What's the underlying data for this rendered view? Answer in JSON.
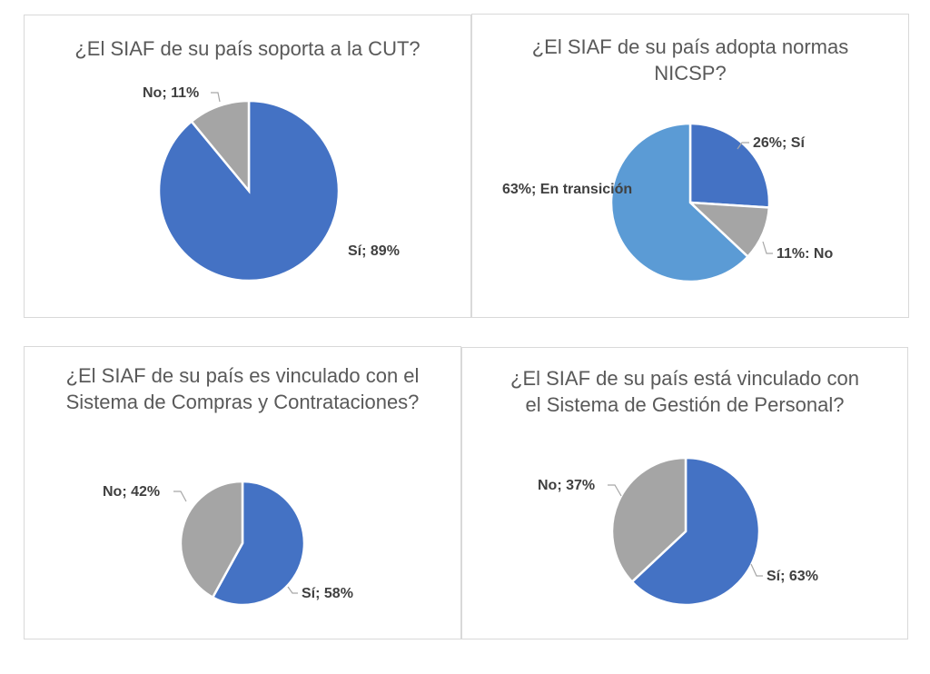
{
  "colors": {
    "blue": "#4472c4",
    "gray": "#a5a5a5",
    "lightblue": "#5b9bd5"
  },
  "chart_data": [
    {
      "type": "pie",
      "title": "¿El SIAF de su país soporta a la CUT?",
      "slices": [
        {
          "label": "Sí; 89%",
          "value": 89,
          "color": "#4472c4"
        },
        {
          "label": "No; 11%",
          "value": 11,
          "color": "#a5a5a5"
        }
      ]
    },
    {
      "type": "pie",
      "title": "¿El SIAF de su país adopta normas NICSP?",
      "slices": [
        {
          "label": "26%; Sí",
          "value": 26,
          "color": "#4472c4"
        },
        {
          "label": "11%: No",
          "value": 11,
          "color": "#a5a5a5"
        },
        {
          "label": "63%; En transición",
          "value": 63,
          "color": "#5b9bd5"
        }
      ]
    },
    {
      "type": "pie",
      "title": "¿El SIAF de su país es vinculado con el Sistema de Compras y Contrataciones?",
      "slices": [
        {
          "label": "Sí; 58%",
          "value": 58,
          "color": "#4472c4"
        },
        {
          "label": "No; 42%",
          "value": 42,
          "color": "#a5a5a5"
        }
      ]
    },
    {
      "type": "pie",
      "title": "¿El SIAF de su país está vinculado con el Sistema de Gestión de Personal?",
      "slices": [
        {
          "label": "Sí; 63%",
          "value": 63,
          "color": "#4472c4"
        },
        {
          "label": "No; 37%",
          "value": 37,
          "color": "#a5a5a5"
        }
      ]
    }
  ]
}
